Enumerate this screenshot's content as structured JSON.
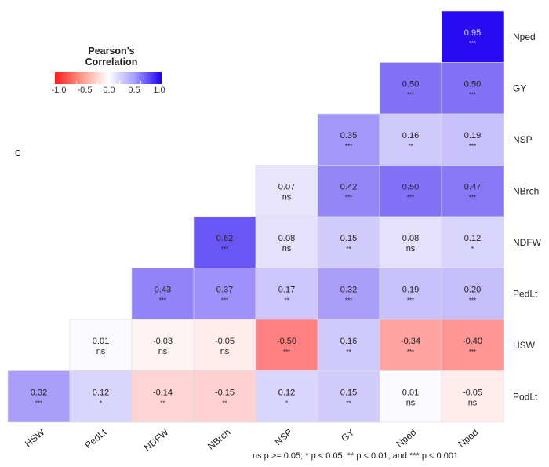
{
  "panel_label": "c",
  "legend": {
    "title": "Pearson's\nCorrelation",
    "ticks": [
      "-1.0",
      "-0.5",
      "0.0",
      "0.5",
      "1.0"
    ]
  },
  "footnote": "ns p >= 0.05; * p < 0.05; ** p < 0.01; and *** p < 0.001",
  "chart_data": {
    "type": "heatmap",
    "title": "",
    "x_labels": [
      "HSW",
      "PedLt",
      "NDFW",
      "NBrch",
      "NSP",
      "GY",
      "Nped",
      "Npod"
    ],
    "y_labels": [
      "Nped",
      "GY",
      "NSP",
      "NBrch",
      "NDFW",
      "PedLt",
      "HSW",
      "PodLt"
    ],
    "color_scale": {
      "min": -1.0,
      "mid": 0.0,
      "max": 1.0,
      "low": "#ff1a1a",
      "midColor": "#ffffff",
      "high": "#1f00f0"
    },
    "cells": [
      {
        "row": "Nped",
        "col": "Npod",
        "value": 0.95,
        "sig": "***"
      },
      {
        "row": "GY",
        "col": "Nped",
        "value": 0.5,
        "sig": "***"
      },
      {
        "row": "GY",
        "col": "Npod",
        "value": 0.5,
        "sig": "***"
      },
      {
        "row": "NSP",
        "col": "GY",
        "value": 0.35,
        "sig": "***"
      },
      {
        "row": "NSP",
        "col": "Nped",
        "value": 0.16,
        "sig": "**"
      },
      {
        "row": "NSP",
        "col": "Npod",
        "value": 0.19,
        "sig": "***"
      },
      {
        "row": "NBrch",
        "col": "NSP",
        "value": 0.07,
        "sig": "ns"
      },
      {
        "row": "NBrch",
        "col": "GY",
        "value": 0.42,
        "sig": "***"
      },
      {
        "row": "NBrch",
        "col": "Nped",
        "value": 0.5,
        "sig": "***"
      },
      {
        "row": "NBrch",
        "col": "Npod",
        "value": 0.47,
        "sig": "***"
      },
      {
        "row": "NDFW",
        "col": "NBrch",
        "value": 0.62,
        "sig": "***"
      },
      {
        "row": "NDFW",
        "col": "NSP",
        "value": 0.08,
        "sig": "ns"
      },
      {
        "row": "NDFW",
        "col": "GY",
        "value": 0.15,
        "sig": "**"
      },
      {
        "row": "NDFW",
        "col": "Nped",
        "value": 0.08,
        "sig": "ns"
      },
      {
        "row": "NDFW",
        "col": "Npod",
        "value": 0.12,
        "sig": "*"
      },
      {
        "row": "PedLt",
        "col": "NDFW",
        "value": 0.43,
        "sig": "***"
      },
      {
        "row": "PedLt",
        "col": "NBrch",
        "value": 0.37,
        "sig": "***"
      },
      {
        "row": "PedLt",
        "col": "NSP",
        "value": 0.17,
        "sig": "**"
      },
      {
        "row": "PedLt",
        "col": "GY",
        "value": 0.32,
        "sig": "***"
      },
      {
        "row": "PedLt",
        "col": "Nped",
        "value": 0.19,
        "sig": "***"
      },
      {
        "row": "PedLt",
        "col": "Npod",
        "value": 0.2,
        "sig": "***"
      },
      {
        "row": "HSW",
        "col": "PedLt",
        "value": 0.01,
        "sig": "ns"
      },
      {
        "row": "HSW",
        "col": "NDFW",
        "value": -0.03,
        "sig": "ns"
      },
      {
        "row": "HSW",
        "col": "NBrch",
        "value": -0.05,
        "sig": "ns"
      },
      {
        "row": "HSW",
        "col": "NSP",
        "value": -0.5,
        "sig": "***"
      },
      {
        "row": "HSW",
        "col": "GY",
        "value": 0.16,
        "sig": "**"
      },
      {
        "row": "HSW",
        "col": "Nped",
        "value": -0.34,
        "sig": "***"
      },
      {
        "row": "HSW",
        "col": "Npod",
        "value": -0.4,
        "sig": "***"
      },
      {
        "row": "PodLt",
        "col": "HSW",
        "value": 0.32,
        "sig": "***"
      },
      {
        "row": "PodLt",
        "col": "PedLt",
        "value": 0.12,
        "sig": "*"
      },
      {
        "row": "PodLt",
        "col": "NDFW",
        "value": -0.14,
        "sig": "**"
      },
      {
        "row": "PodLt",
        "col": "NBrch",
        "value": -0.15,
        "sig": "**"
      },
      {
        "row": "PodLt",
        "col": "NSP",
        "value": 0.12,
        "sig": "*"
      },
      {
        "row": "PodLt",
        "col": "GY",
        "value": 0.15,
        "sig": "**"
      },
      {
        "row": "PodLt",
        "col": "Nped",
        "value": 0.01,
        "sig": "ns"
      },
      {
        "row": "PodLt",
        "col": "Npod",
        "value": -0.05,
        "sig": "ns"
      }
    ]
  }
}
